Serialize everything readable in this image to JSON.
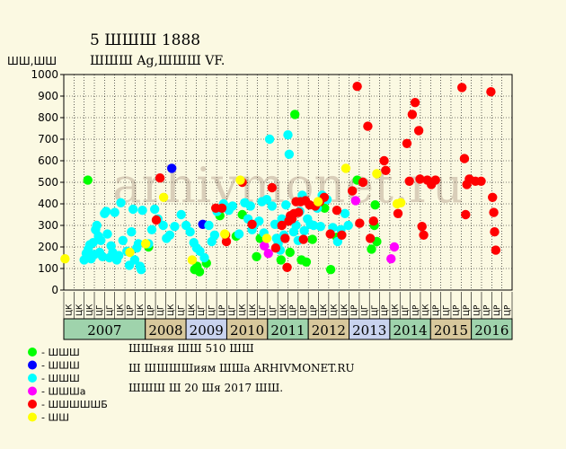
{
  "title": "5 ШШШ 1888",
  "subtitle": "ШШШ Ag,ШШШ VF.",
  "ylabel": "ШШ,ШШ",
  "notes": [
    "ШШняя ШШ 510 ШШ",
    "Ш ШШШШиям ШШа ARHIVMONET.RU",
    "ШШШ Ш 20 Шя 2017 ШШ."
  ],
  "watermark": "arhivmonet.ru",
  "colors": {
    "background": "#fbf9e2",
    "plot_bg": "#fbf9e2",
    "grid": "#000000",
    "axis": "#000000",
    "year_band_green": "#9fd3ac",
    "year_band_tan": "#d8c89c",
    "year_band_blue": "#c9d3ef",
    "half_label_bg": "#b8dcc7",
    "watermark": "#d9ceb9"
  },
  "chart_data": {
    "type": "scatter",
    "title": "5 ШШШ 1888",
    "subtitle": "ШШШ Ag,ШШШ VF.",
    "ylabel": "ШШ,ШШ",
    "ylim": [
      0,
      1000
    ],
    "y_ticks": [
      0,
      100,
      200,
      300,
      400,
      500,
      600,
      700,
      800,
      900,
      1000
    ],
    "grid": true,
    "x_range": [
      2006.0,
      2017.0
    ],
    "x_unit": "year",
    "half_labels": [
      "ЦК",
      "ЦК",
      "ЦК",
      "ЦГ",
      "ЦГ",
      "ЦК",
      "ЦР",
      "ЦК",
      "ЦР",
      "ЦГ",
      "ЦК",
      "ЦГ",
      "ЦК",
      "ЦГ",
      "ЦГ",
      "ЦР",
      "ЦГ",
      "ЦК",
      "ЦК",
      "ЦГ",
      "ЦГ",
      "ЦК",
      "ЦР",
      "ЦР",
      "ЦР",
      "ЦК",
      "ЦК",
      "ЦК",
      "ЦР",
      "ЦГ",
      "ЦГ",
      "ЦР",
      "ЦК",
      "ЦГ",
      "ЦР",
      "ЦК",
      "ЦР",
      "ЦГ",
      "ЦР",
      "ЦР",
      "ЦР",
      "ЦР",
      "ЦР",
      "ЦР"
    ],
    "years": [
      {
        "label": "2007",
        "start": 2006.0,
        "end": 2008.0,
        "band": "green"
      },
      {
        "label": "2008",
        "start": 2008.0,
        "end": 2009.0,
        "band": "tan"
      },
      {
        "label": "2009",
        "start": 2009.0,
        "end": 2010.0,
        "band": "blue"
      },
      {
        "label": "2010",
        "start": 2010.0,
        "end": 2011.0,
        "band": "tan"
      },
      {
        "label": "2011",
        "start": 2011.0,
        "end": 2012.0,
        "band": "green"
      },
      {
        "label": "2012",
        "start": 2012.0,
        "end": 2013.0,
        "band": "tan"
      },
      {
        "label": "2013",
        "start": 2013.0,
        "end": 2014.0,
        "band": "blue"
      },
      {
        "label": "2014",
        "start": 2014.0,
        "end": 2015.0,
        "band": "green"
      },
      {
        "label": "2015",
        "start": 2015.0,
        "end": 2016.0,
        "band": "tan"
      },
      {
        "label": "2016",
        "start": 2016.0,
        "end": 2017.0,
        "band": "green"
      }
    ],
    "legend": [
      {
        "label": "- ШШШ",
        "color": "#00ff00"
      },
      {
        "label": "- ШШШ",
        "color": "#0000ff"
      },
      {
        "label": "- ШШШ",
        "color": "#00ffff"
      },
      {
        "label": "- ШШШа",
        "color": "#ff00ff"
      },
      {
        "label": "- ШШШШШБ",
        "color": "#ff0000"
      },
      {
        "label": "- ШШ",
        "color": "#ffff00"
      }
    ],
    "series": [
      {
        "name": "- ШШШ",
        "color": "#00ff00",
        "points": [
          [
            2006.59,
            510
          ],
          [
            2008.08,
            200
          ],
          [
            2009.21,
            95
          ],
          [
            2009.27,
            110
          ],
          [
            2009.33,
            85
          ],
          [
            2009.5,
            125
          ],
          [
            2009.83,
            345
          ],
          [
            2010.23,
            250
          ],
          [
            2010.38,
            350
          ],
          [
            2010.73,
            155
          ],
          [
            2010.82,
            240
          ],
          [
            2011.33,
            140
          ],
          [
            2011.55,
            175
          ],
          [
            2011.67,
            815
          ],
          [
            2011.83,
            140
          ],
          [
            2011.95,
            130
          ],
          [
            2012.1,
            235
          ],
          [
            2012.4,
            380
          ],
          [
            2012.55,
            95
          ],
          [
            2012.7,
            245
          ],
          [
            2013.2,
            510
          ],
          [
            2013.55,
            190
          ],
          [
            2013.62,
            300
          ],
          [
            2013.64,
            395
          ],
          [
            2013.68,
            225
          ]
        ]
      },
      {
        "name": "- ШШШ",
        "color": "#0000ff",
        "points": [
          [
            2008.65,
            565
          ],
          [
            2009.41,
            305
          ]
        ]
      },
      {
        "name": "- ШШШ",
        "color": "#00ffff",
        "points": [
          [
            2006.5,
            140
          ],
          [
            2006.55,
            170
          ],
          [
            2006.6,
            190
          ],
          [
            2006.64,
            210
          ],
          [
            2006.67,
            145
          ],
          [
            2006.72,
            220
          ],
          [
            2006.75,
            165
          ],
          [
            2006.78,
            280
          ],
          [
            2006.81,
            300
          ],
          [
            2006.85,
            250
          ],
          [
            2006.88,
            175
          ],
          [
            2006.91,
            230
          ],
          [
            2006.95,
            155
          ],
          [
            2007.0,
            355
          ],
          [
            2007.04,
            365
          ],
          [
            2007.07,
            260
          ],
          [
            2007.12,
            150
          ],
          [
            2007.16,
            205
          ],
          [
            2007.2,
            175
          ],
          [
            2007.25,
            360
          ],
          [
            2007.3,
            140
          ],
          [
            2007.35,
            160
          ],
          [
            2007.4,
            405
          ],
          [
            2007.45,
            230
          ],
          [
            2007.55,
            180
          ],
          [
            2007.61,
            115
          ],
          [
            2007.66,
            270
          ],
          [
            2007.7,
            375
          ],
          [
            2007.74,
            140
          ],
          [
            2007.79,
            195
          ],
          [
            2007.83,
            215
          ],
          [
            2007.87,
            110
          ],
          [
            2007.9,
            95
          ],
          [
            2007.93,
            370
          ],
          [
            2008.08,
            215
          ],
          [
            2008.16,
            280
          ],
          [
            2008.23,
            375
          ],
          [
            2008.31,
            330
          ],
          [
            2008.44,
            300
          ],
          [
            2008.52,
            240
          ],
          [
            2008.6,
            255
          ],
          [
            2008.72,
            295
          ],
          [
            2008.88,
            350
          ],
          [
            2009.0,
            300
          ],
          [
            2009.1,
            270
          ],
          [
            2009.19,
            220
          ],
          [
            2009.26,
            195
          ],
          [
            2009.34,
            180
          ],
          [
            2009.45,
            150
          ],
          [
            2009.56,
            300
          ],
          [
            2009.63,
            225
          ],
          [
            2009.7,
            255
          ],
          [
            2009.76,
            365
          ],
          [
            2009.92,
            400
          ],
          [
            2010.05,
            370
          ],
          [
            2010.14,
            390
          ],
          [
            2010.3,
            260
          ],
          [
            2010.44,
            405
          ],
          [
            2010.52,
            330
          ],
          [
            2010.58,
            390
          ],
          [
            2010.62,
            280
          ],
          [
            2010.68,
            305
          ],
          [
            2010.79,
            320
          ],
          [
            2010.86,
            410
          ],
          [
            2010.91,
            265
          ],
          [
            2010.98,
            420
          ],
          [
            2011.05,
            700
          ],
          [
            2011.11,
            390
          ],
          [
            2011.18,
            305
          ],
          [
            2011.22,
            240
          ],
          [
            2011.26,
            215
          ],
          [
            2011.31,
            185
          ],
          [
            2011.35,
            330
          ],
          [
            2011.4,
            255
          ],
          [
            2011.45,
            395
          ],
          [
            2011.5,
            720
          ],
          [
            2011.53,
            630
          ],
          [
            2011.6,
            340
          ],
          [
            2011.64,
            270
          ],
          [
            2011.7,
            300
          ],
          [
            2011.75,
            230
          ],
          [
            2011.79,
            365
          ],
          [
            2011.85,
            440
          ],
          [
            2011.9,
            275
          ],
          [
            2011.98,
            330
          ],
          [
            2012.05,
            305
          ],
          [
            2012.13,
            300
          ],
          [
            2012.22,
            380
          ],
          [
            2012.3,
            295
          ],
          [
            2012.34,
            440
          ],
          [
            2012.46,
            420
          ],
          [
            2012.6,
            290
          ],
          [
            2012.72,
            225
          ],
          [
            2012.8,
            280
          ],
          [
            2012.9,
            355
          ],
          [
            2012.98,
            300
          ]
        ]
      },
      {
        "name": "- ШШШа",
        "color": "#ff00ff",
        "points": [
          [
            2010.92,
            205
          ],
          [
            2011.02,
            170
          ],
          [
            2013.16,
            415
          ],
          [
            2014.03,
            145
          ],
          [
            2014.11,
            200
          ]
        ]
      },
      {
        "name": "- ШШШШШБ",
        "color": "#ff0000",
        "points": [
          [
            2008.36,
            520
          ],
          [
            2008.27,
            325
          ],
          [
            2009.73,
            380
          ],
          [
            2009.88,
            380
          ],
          [
            2009.97,
            255
          ],
          [
            2009.99,
            225
          ],
          [
            2010.38,
            500
          ],
          [
            2010.62,
            305
          ],
          [
            2011.11,
            475
          ],
          [
            2011.2,
            195
          ],
          [
            2011.35,
            300
          ],
          [
            2011.43,
            240
          ],
          [
            2011.48,
            105
          ],
          [
            2011.52,
            320
          ],
          [
            2011.56,
            345
          ],
          [
            2011.6,
            330
          ],
          [
            2011.65,
            355
          ],
          [
            2011.7,
            410
          ],
          [
            2011.76,
            360
          ],
          [
            2011.81,
            410
          ],
          [
            2011.88,
            235
          ],
          [
            2011.93,
            415
          ],
          [
            2012.03,
            395
          ],
          [
            2012.17,
            390
          ],
          [
            2012.28,
            410
          ],
          [
            2012.39,
            430
          ],
          [
            2012.54,
            260
          ],
          [
            2012.7,
            370
          ],
          [
            2012.82,
            255
          ],
          [
            2013.08,
            460
          ],
          [
            2013.2,
            945
          ],
          [
            2013.26,
            310
          ],
          [
            2013.34,
            500
          ],
          [
            2013.46,
            760
          ],
          [
            2013.52,
            240
          ],
          [
            2013.6,
            320
          ],
          [
            2013.86,
            600
          ],
          [
            2013.9,
            555
          ],
          [
            2014.2,
            355
          ],
          [
            2014.42,
            680
          ],
          [
            2014.48,
            505
          ],
          [
            2014.55,
            815
          ],
          [
            2014.62,
            870
          ],
          [
            2014.71,
            740
          ],
          [
            2014.74,
            515
          ],
          [
            2014.79,
            295
          ],
          [
            2014.83,
            255
          ],
          [
            2014.92,
            510
          ],
          [
            2015.02,
            490
          ],
          [
            2015.12,
            510
          ],
          [
            2015.77,
            940
          ],
          [
            2015.83,
            610
          ],
          [
            2015.86,
            350
          ],
          [
            2015.89,
            490
          ],
          [
            2015.95,
            515
          ],
          [
            2016.1,
            505
          ],
          [
            2016.24,
            505
          ],
          [
            2016.48,
            920
          ],
          [
            2016.52,
            430
          ],
          [
            2016.55,
            360
          ],
          [
            2016.57,
            270
          ],
          [
            2016.6,
            185
          ]
        ]
      },
      {
        "name": "- ШШ",
        "color": "#ffff00",
        "points": [
          [
            2006.03,
            145
          ],
          [
            2007.62,
            175
          ],
          [
            2008.01,
            215
          ],
          [
            2008.45,
            430
          ],
          [
            2009.15,
            140
          ],
          [
            2009.95,
            260
          ],
          [
            2010.33,
            510
          ],
          [
            2010.98,
            240
          ],
          [
            2012.24,
            410
          ],
          [
            2012.92,
            565
          ],
          [
            2013.68,
            540
          ],
          [
            2014.18,
            400
          ],
          [
            2014.27,
            405
          ]
        ]
      }
    ]
  }
}
